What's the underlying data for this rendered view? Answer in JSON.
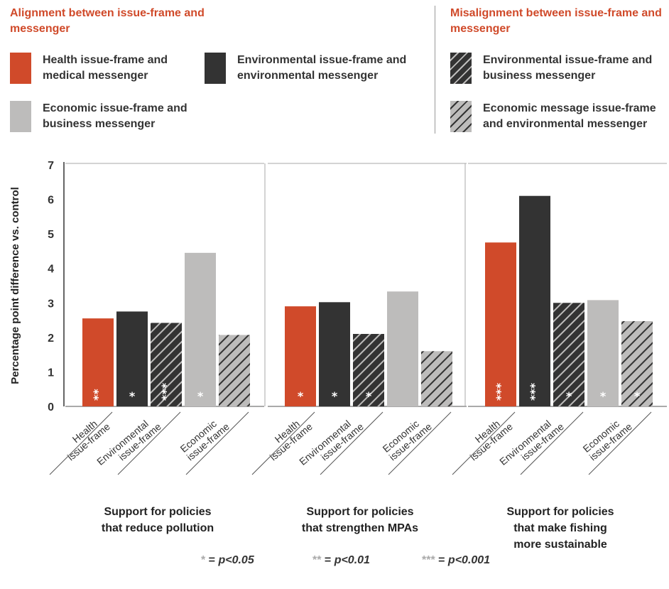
{
  "legend": {
    "aligned_title": "Alignment between issue-frame and messenger",
    "misaligned_title": "Misalignment between issue-frame and messenger",
    "items": [
      {
        "label": "Health issue-frame and medical messenger",
        "color": "#d04a2a"
      },
      {
        "label": "Environmental issue-frame and environmental messenger",
        "color": "#333333"
      },
      {
        "label": "Economic issue-frame and business messenger",
        "color": "#bdbcbb"
      },
      {
        "label": "Environmental issue-frame and business messenger",
        "color": "#333333",
        "hatch": "#bdbcbb"
      },
      {
        "label": "Economic message issue-frame and environmental messenger",
        "color": "#bdbcbb",
        "hatch": "#333333"
      }
    ]
  },
  "significance_key": [
    {
      "stars": "*",
      "text": "p<0.05"
    },
    {
      "stars": "**",
      "text": "p<0.01"
    },
    {
      "stars": "***",
      "text": "p<0.001"
    }
  ],
  "chart_data": {
    "type": "bar",
    "ylabel": "Percentage point difference vs. control",
    "ylim": [
      0,
      7
    ],
    "yticks": [
      0,
      1,
      2,
      3,
      4,
      5,
      6,
      7
    ],
    "grid": false,
    "x_group_labels": [
      {
        "line1": "Health",
        "line2": "issue-frame"
      },
      {
        "line1": "Environmental",
        "line2": "issue-frame"
      },
      {
        "line1": "Economic",
        "line2": "issue-frame"
      }
    ],
    "panels": [
      {
        "title": [
          "Support for policies",
          "that reduce pollution"
        ],
        "bars": [
          {
            "series": 0,
            "value": 2.55,
            "sig": "**"
          },
          {
            "series": 1,
            "value": 2.75,
            "sig": "*"
          },
          {
            "series": 3,
            "value": 2.42,
            "sig": "***"
          },
          {
            "series": 2,
            "value": 4.45,
            "sig": "*"
          },
          {
            "series": 4,
            "value": 2.07,
            "sig": ""
          }
        ]
      },
      {
        "title": [
          "Support for policies",
          "that strengthen MPAs"
        ],
        "bars": [
          {
            "series": 0,
            "value": 2.9,
            "sig": "*"
          },
          {
            "series": 1,
            "value": 3.02,
            "sig": "*"
          },
          {
            "series": 3,
            "value": 2.1,
            "sig": "*"
          },
          {
            "series": 2,
            "value": 3.33,
            "sig": ""
          },
          {
            "series": 4,
            "value": 1.6,
            "sig": ""
          }
        ]
      },
      {
        "title": [
          "Support for policies",
          "that make fishing",
          "more sustainable"
        ],
        "bars": [
          {
            "series": 0,
            "value": 4.75,
            "sig": "***"
          },
          {
            "series": 1,
            "value": 6.1,
            "sig": "***"
          },
          {
            "series": 3,
            "value": 3.0,
            "sig": "*"
          },
          {
            "series": 2,
            "value": 3.08,
            "sig": "*"
          },
          {
            "series": 4,
            "value": 2.47,
            "sig": "*"
          }
        ]
      }
    ]
  }
}
